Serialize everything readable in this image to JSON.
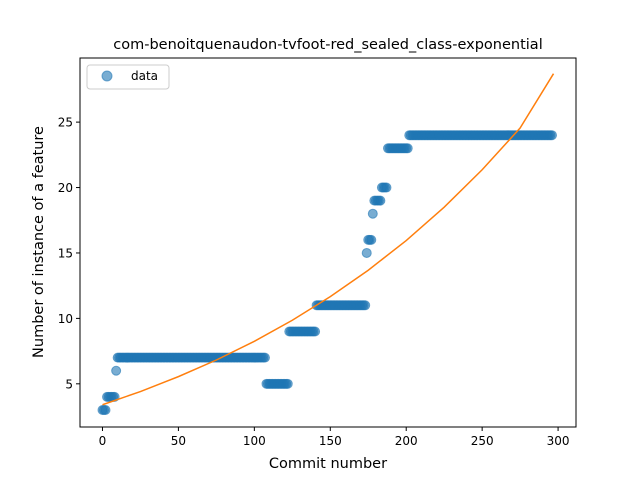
{
  "chart_data": {
    "type": "scatter",
    "title": "com-benoitquenaudon-tvfoot-red_sealed_class-exponential",
    "xlabel": "Commit number",
    "ylabel": "Number of instance of a feature",
    "xlim": [
      -14.8,
      311.8
    ],
    "ylim": [
      1.7,
      29.9
    ],
    "xticks": [
      0,
      50,
      100,
      150,
      200,
      250,
      300
    ],
    "yticks": [
      5,
      10,
      15,
      20,
      25
    ],
    "legend": {
      "position": "top-left",
      "entries": [
        "data"
      ]
    },
    "colors": {
      "data": "#1f77b4",
      "fit": "#ff7f0e"
    },
    "series": [
      {
        "name": "data",
        "kind": "scatter",
        "segments": [
          {
            "x_start": 0,
            "x_end": 2,
            "y": 3
          },
          {
            "x_start": 3,
            "x_end": 8,
            "y": 4
          },
          {
            "x_start": 9,
            "x_end": 9,
            "y": 6
          },
          {
            "x_start": 10,
            "x_end": 107,
            "y": 7
          },
          {
            "x_start": 108,
            "x_end": 122,
            "y": 5
          },
          {
            "x_start": 123,
            "x_end": 140,
            "y": 9
          },
          {
            "x_start": 141,
            "x_end": 173,
            "y": 11
          },
          {
            "x_start": 174,
            "x_end": 174,
            "y": 15
          },
          {
            "x_start": 175,
            "x_end": 177,
            "y": 16
          },
          {
            "x_start": 178,
            "x_end": 178,
            "y": 18
          },
          {
            "x_start": 179,
            "x_end": 183,
            "y": 19
          },
          {
            "x_start": 184,
            "x_end": 187,
            "y": 20
          },
          {
            "x_start": 188,
            "x_end": 201,
            "y": 23
          },
          {
            "x_start": 202,
            "x_end": 296,
            "y": 24
          }
        ]
      },
      {
        "kind": "line",
        "x": [
          0,
          25,
          50,
          75,
          100,
          125,
          150,
          175,
          200,
          225,
          250,
          275,
          297
        ],
        "y": [
          3.4,
          4.41,
          5.55,
          6.82,
          8.25,
          9.86,
          11.66,
          13.68,
          15.95,
          18.5,
          21.36,
          24.55,
          28.7
        ]
      }
    ]
  }
}
